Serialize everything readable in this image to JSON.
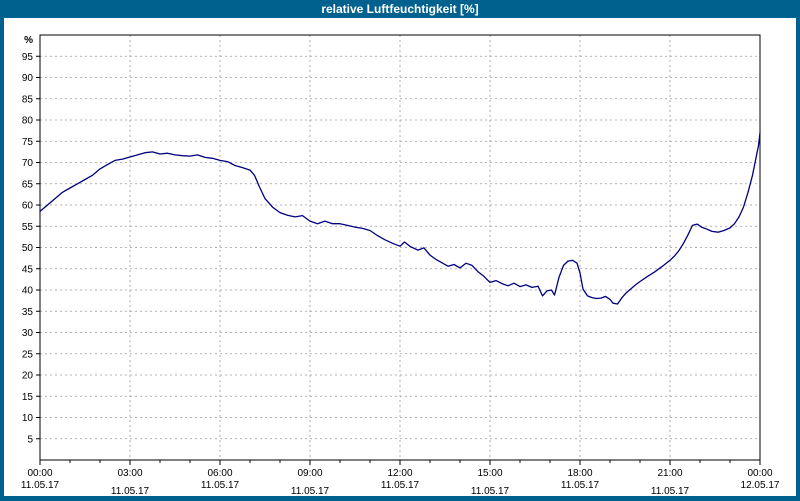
{
  "title_bar": {
    "title": "relative Luftfeuchtigkeit [%]"
  },
  "colors": {
    "frame_blue": "#00618e",
    "panel": "#ffffff",
    "line": "#000080",
    "grid": "#9a9a9a",
    "axis": "#000000"
  },
  "chart_data": {
    "type": "line",
    "title": "relative Luftfeuchtigkeit [%]",
    "xlabel": "",
    "ylabel": "%",
    "ylim": [
      0,
      100
    ],
    "y_ticks": [
      5,
      10,
      15,
      20,
      25,
      30,
      35,
      40,
      45,
      50,
      55,
      60,
      65,
      70,
      75,
      80,
      85,
      90,
      95
    ],
    "xlim_hours": [
      0,
      24
    ],
    "grid": "dashed",
    "legend": "none",
    "line_color": "#000080",
    "grid_color": "#9a9a9a",
    "x_ticks": [
      {
        "hour": 0,
        "time": "00:00",
        "date": "11.05.17"
      },
      {
        "hour": 3,
        "time": "03:00",
        "date": "11.05.17"
      },
      {
        "hour": 6,
        "time": "06:00",
        "date": "11.05.17"
      },
      {
        "hour": 9,
        "time": "09:00",
        "date": "11.05.17"
      },
      {
        "hour": 12,
        "time": "12:00",
        "date": "11.05.17"
      },
      {
        "hour": 15,
        "time": "15:00",
        "date": "11.05.17"
      },
      {
        "hour": 18,
        "time": "18:00",
        "date": "11.05.17"
      },
      {
        "hour": 21,
        "time": "21:00",
        "date": "11.05.17"
      },
      {
        "hour": 24,
        "time": "00:00",
        "date": "12.05.17"
      }
    ],
    "series": [
      {
        "name": "relative Luftfeuchtigkeit",
        "points": [
          [
            0,
            58.5
          ],
          [
            0.25,
            60
          ],
          [
            0.5,
            61.5
          ],
          [
            0.75,
            63
          ],
          [
            1,
            64
          ],
          [
            1.25,
            65
          ],
          [
            1.5,
            66
          ],
          [
            1.75,
            67
          ],
          [
            2,
            68.5
          ],
          [
            2.25,
            69.5
          ],
          [
            2.5,
            70.5
          ],
          [
            2.75,
            70.8
          ],
          [
            3,
            71.3
          ],
          [
            3.25,
            71.8
          ],
          [
            3.5,
            72.3
          ],
          [
            3.75,
            72.5
          ],
          [
            4,
            72
          ],
          [
            4.25,
            72.2
          ],
          [
            4.5,
            71.8
          ],
          [
            4.75,
            71.6
          ],
          [
            5,
            71.5
          ],
          [
            5.25,
            71.8
          ],
          [
            5.5,
            71.2
          ],
          [
            5.75,
            71
          ],
          [
            6,
            70.5
          ],
          [
            6.25,
            70.2
          ],
          [
            6.5,
            69.3
          ],
          [
            6.75,
            68.8
          ],
          [
            7,
            68.2
          ],
          [
            7.15,
            67
          ],
          [
            7.3,
            64.5
          ],
          [
            7.5,
            61.5
          ],
          [
            7.75,
            59.5
          ],
          [
            8,
            58.2
          ],
          [
            8.25,
            57.6
          ],
          [
            8.5,
            57.2
          ],
          [
            8.75,
            57.5
          ],
          [
            9,
            56.2
          ],
          [
            9.25,
            55.6
          ],
          [
            9.5,
            56.2
          ],
          [
            9.75,
            55.6
          ],
          [
            10,
            55.6
          ],
          [
            10.25,
            55.2
          ],
          [
            10.5,
            54.8
          ],
          [
            10.75,
            54.5
          ],
          [
            11,
            54
          ],
          [
            11.25,
            52.8
          ],
          [
            11.5,
            51.8
          ],
          [
            11.75,
            51
          ],
          [
            12,
            50.3
          ],
          [
            12.15,
            51.3
          ],
          [
            12.35,
            50.2
          ],
          [
            12.6,
            49.4
          ],
          [
            12.8,
            49.9
          ],
          [
            13,
            48.2
          ],
          [
            13.2,
            47.2
          ],
          [
            13.4,
            46.4
          ],
          [
            13.6,
            45.6
          ],
          [
            13.8,
            46
          ],
          [
            14,
            45.2
          ],
          [
            14.2,
            46.3
          ],
          [
            14.4,
            45.8
          ],
          [
            14.6,
            44.3
          ],
          [
            14.8,
            43.2
          ],
          [
            15,
            41.8
          ],
          [
            15.2,
            42.2
          ],
          [
            15.4,
            41.5
          ],
          [
            15.6,
            41
          ],
          [
            15.8,
            41.6
          ],
          [
            16,
            40.8
          ],
          [
            16.2,
            41.2
          ],
          [
            16.4,
            40.6
          ],
          [
            16.6,
            40.9
          ],
          [
            16.75,
            38.6
          ],
          [
            16.9,
            39.8
          ],
          [
            17.05,
            40
          ],
          [
            17.15,
            38.8
          ],
          [
            17.3,
            43
          ],
          [
            17.45,
            45.8
          ],
          [
            17.6,
            46.8
          ],
          [
            17.75,
            47
          ],
          [
            17.9,
            46.3
          ],
          [
            18,
            44
          ],
          [
            18.1,
            40.2
          ],
          [
            18.25,
            38.6
          ],
          [
            18.4,
            38.2
          ],
          [
            18.55,
            38
          ],
          [
            18.7,
            38.1
          ],
          [
            18.85,
            38.5
          ],
          [
            19,
            37.8
          ],
          [
            19.1,
            36.9
          ],
          [
            19.25,
            36.7
          ],
          [
            19.4,
            38.2
          ],
          [
            19.55,
            39.4
          ],
          [
            19.7,
            40.3
          ],
          [
            19.85,
            41.2
          ],
          [
            20,
            42
          ],
          [
            20.25,
            43.2
          ],
          [
            20.5,
            44.3
          ],
          [
            20.75,
            45.6
          ],
          [
            21,
            47
          ],
          [
            21.15,
            48
          ],
          [
            21.3,
            49.3
          ],
          [
            21.45,
            51
          ],
          [
            21.6,
            53
          ],
          [
            21.75,
            55.2
          ],
          [
            21.9,
            55.5
          ],
          [
            22.05,
            54.8
          ],
          [
            22.2,
            54.4
          ],
          [
            22.4,
            53.8
          ],
          [
            22.6,
            53.6
          ],
          [
            22.8,
            54
          ],
          [
            23,
            54.6
          ],
          [
            23.15,
            55.6
          ],
          [
            23.3,
            57.2
          ],
          [
            23.45,
            59.5
          ],
          [
            23.6,
            63
          ],
          [
            23.75,
            67
          ],
          [
            23.85,
            70.5
          ],
          [
            23.95,
            74
          ],
          [
            24,
            77
          ]
        ]
      }
    ]
  }
}
